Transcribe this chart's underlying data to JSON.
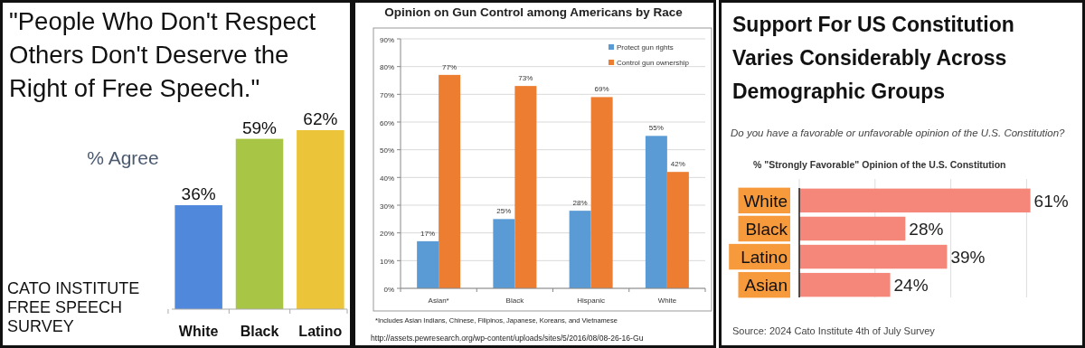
{
  "chart_data": [
    {
      "type": "bar",
      "title": "\"People Who Don't Respect Others Don't Deserve the Right of Free Speech.\"",
      "ylabel": "% Agree",
      "categories": [
        "White",
        "Black",
        "Latino"
      ],
      "values": [
        36,
        59,
        62
      ],
      "colors": [
        "#5088dc",
        "#a8c545",
        "#ecc43a"
      ],
      "value_labels": [
        "36%",
        "59%",
        "62%"
      ],
      "annotations": [
        "CATO INSTITUTE FREE SPEECH SURVEY"
      ]
    },
    {
      "type": "bar",
      "title": "Opinion on Gun Control among Americans by Race",
      "categories": [
        "Asian*",
        "Black",
        "Hispanic",
        "White"
      ],
      "series": [
        {
          "name": "Protect gun rights",
          "color": "#5b9bd5",
          "values": [
            17,
            25,
            28,
            55
          ],
          "value_labels": [
            "17%",
            "25%",
            "28%",
            "55%"
          ]
        },
        {
          "name": "Control gun ownership",
          "color": "#ed7d31",
          "values": [
            77,
            73,
            69,
            42
          ],
          "value_labels": [
            "77%",
            "73%",
            "69%",
            "42%"
          ]
        }
      ],
      "ylim": [
        0,
        90
      ],
      "yticks": [
        {
          "value": 0,
          "label": "0%"
        },
        {
          "value": 10,
          "label": "10%"
        },
        {
          "value": 20,
          "label": "20%"
        },
        {
          "value": 30,
          "label": "30%"
        },
        {
          "value": 40,
          "label": "40%"
        },
        {
          "value": 50,
          "label": "50%"
        },
        {
          "value": 60,
          "label": "60%"
        },
        {
          "value": 70,
          "label": "70%"
        },
        {
          "value": 80,
          "label": "80%"
        },
        {
          "value": 90,
          "label": "90%"
        }
      ],
      "grid": "y",
      "legend": "top right",
      "annotations": [
        "*Includes Asian Indians, Chinese, Filipinos, Japanese, Koreans, and Vietnamese",
        "http://assets.pewresearch.org/wp-content/uploads/sites/5/2016/08/08-26-16-Gu"
      ]
    },
    {
      "type": "bar",
      "orientation": "horizontal",
      "title": "Support For US Constitution Varies Considerably Across Demographic Groups",
      "subtitle": "Do you have a favorable or unfavorable opinion of the U.S. Constitution?",
      "xlabel": "% \"Strongly Favorable\" Opinion of the U.S. Constitution",
      "categories": [
        "White",
        "Black",
        "Latino",
        "Asian"
      ],
      "values": [
        61,
        28,
        39,
        24
      ],
      "color": "#f4877a",
      "value_labels": [
        "61%",
        "28%",
        "39%",
        "24%"
      ],
      "xticks": [
        {
          "value": 0,
          "label": null
        },
        {
          "value": 20,
          "label": null
        },
        {
          "value": 40,
          "label": null
        },
        {
          "value": 60,
          "label": null
        }
      ],
      "grid": "x",
      "tick_labels": "y",
      "annotations": [
        "Source: 2024 Cato Institute 4th of July Survey"
      ]
    }
  ]
}
